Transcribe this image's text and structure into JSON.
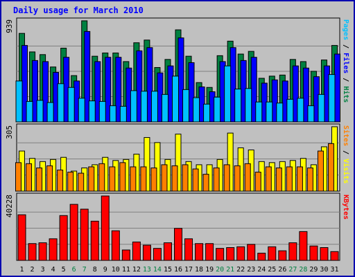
{
  "chart_data": {
    "type": "bar",
    "title": "Daily usage for March 2010",
    "days": [
      "1",
      "2",
      "3",
      "4",
      "5",
      "6",
      "7",
      "8",
      "9",
      "10",
      "11",
      "12",
      "13",
      "14",
      "15",
      "16",
      "17",
      "18",
      "19",
      "20",
      "21",
      "22",
      "23",
      "24",
      "25",
      "26",
      "27",
      "28",
      "29",
      "30",
      "31"
    ],
    "weekend_days": [
      "6",
      "7",
      "13",
      "14",
      "20",
      "21",
      "27",
      "28"
    ],
    "panels": [
      {
        "name": "hits-files-pages",
        "ymax_label": "939",
        "ymax": 939,
        "axis_label_parts": [
          {
            "text": "Pages",
            "color": "#00c0ff"
          },
          {
            "text": " / ",
            "color": "#000000"
          },
          {
            "text": "Files",
            "color": "#0000ff"
          },
          {
            "text": " / ",
            "color": "#000000"
          },
          {
            "text": "Hits",
            "color": "#008040"
          }
        ],
        "series": [
          {
            "name": "Hits",
            "color": "#008040",
            "values": [
              822,
              650,
              625,
              510,
              685,
              430,
              939,
              610,
              640,
              640,
              560,
              735,
              760,
              505,
              580,
              855,
              610,
              365,
              320,
              615,
              750,
              630,
              655,
              405,
              425,
              435,
              580,
              560,
              470,
              575,
              710
            ]
          },
          {
            "name": "Files",
            "color": "#0000ff",
            "values": [
              710,
              570,
              560,
              460,
              600,
              380,
              840,
              560,
              600,
              600,
              500,
              660,
              690,
              455,
              520,
              780,
              550,
              325,
              280,
              560,
              690,
              570,
              600,
              360,
              390,
              380,
              520,
              500,
              420,
              520,
              630
            ]
          },
          {
            "name": "Pages",
            "color": "#00c0ff",
            "values": [
              380,
              190,
              200,
              180,
              355,
              320,
              220,
              195,
              190,
              150,
              145,
              290,
              285,
              285,
              255,
              425,
              300,
              225,
              165,
              230,
              520,
              305,
              310,
              185,
              185,
              175,
              210,
              220,
              150,
              255,
              440
            ]
          }
        ]
      },
      {
        "name": "sites-visits",
        "ymax_label": "305",
        "ymax": 305,
        "axis_label_parts": [
          {
            "text": "Sites",
            "color": "#ff8000"
          },
          {
            "text": " / ",
            "color": "#000000"
          },
          {
            "text": "Visits",
            "color": "#ffff00"
          }
        ],
        "series": [
          {
            "name": "Visits",
            "color": "#ffff00",
            "values": [
              190,
              155,
              140,
              150,
              160,
              95,
              110,
              125,
              160,
              145,
              150,
              175,
              254,
              230,
              150,
              270,
              140,
              125,
              125,
              150,
              275,
              205,
              195,
              140,
              135,
              140,
              145,
              155,
              125,
              210,
              305
            ]
          },
          {
            "name": "Sites",
            "color": "#ff8000",
            "values": [
              135,
              130,
              110,
              120,
              100,
              90,
              85,
              115,
              130,
              115,
              135,
              115,
              115,
              110,
              125,
              120,
              125,
              105,
              80,
              110,
              125,
              120,
              130,
              90,
              115,
              110,
              115,
              115,
              110,
              190,
              225
            ]
          }
        ]
      },
      {
        "name": "kbytes",
        "ymax_label": "40228",
        "ymax": 40228,
        "axis_label_parts": [
          {
            "text": "KBytes",
            "color": "#ff0000"
          }
        ],
        "series": [
          {
            "name": "KBytes",
            "color": "#ff0000",
            "values": [
              28500,
              10500,
              11000,
              13500,
              28000,
              35000,
              32000,
              24500,
              40228,
              18500,
              6500,
              11500,
              9500,
              7500,
              11000,
              20000,
              13500,
              10500,
              10500,
              7500,
              8000,
              8500,
              10000,
              4500,
              8500,
              6000,
              11000,
              18000,
              9000,
              8000,
              5500
            ]
          }
        ]
      }
    ],
    "colors": {
      "frame_border": "#0000b0",
      "background": "#c0c0c0",
      "title_color": "#0000ff",
      "weekday_label": "#000000",
      "weekend_label": "#008040",
      "bar_edge": "#000000"
    }
  }
}
